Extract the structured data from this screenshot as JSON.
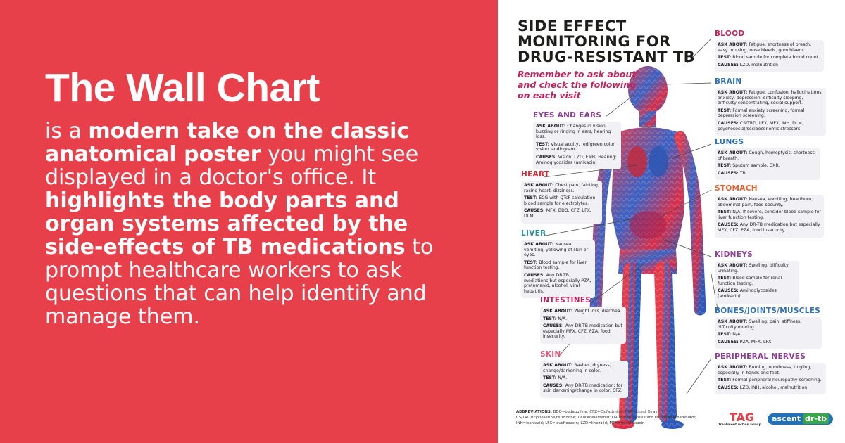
{
  "left": {
    "title": "The Wall Chart",
    "body": [
      {
        "text": "is a ",
        "bold": false
      },
      {
        "text": "modern take on the classic anatomical poster",
        "bold": true
      },
      {
        "text": " you might see displayed in a doctor's office. It ",
        "bold": false
      },
      {
        "text": "highlights the body parts and organ systems affected by the side-effects of TB medications",
        "bold": true
      },
      {
        "text": " to prompt healthcare workers to ask questions that can help identify and manage them.",
        "bold": false
      }
    ]
  },
  "poster": {
    "title": [
      "SIDE EFFECT",
      "MONITORING FOR",
      "DRUG-RESISTANT TB"
    ],
    "subtitle": "Remember to ask about and check the following on each visit",
    "sections": [
      {
        "name": "BLOOD",
        "color": "#c0245c",
        "items": [
          {
            "label": "ASK ABOUT:",
            "text": "Fatigue, shortness of breath, easy bruising, nose bleeds, gum bleeds."
          },
          {
            "label": "TEST:",
            "text": "Blood sample for complete blood count."
          },
          {
            "label": "CAUSES:",
            "text": "LZD, malnutrition"
          }
        ]
      },
      {
        "name": "BRAIN",
        "color": "#2f6fb5",
        "items": [
          {
            "label": "ASK ABOUT:",
            "text": "Fatigue, confusion, hallucinations, anxiety, depression, difficulty sleeping, difficulty concentrating, social support."
          },
          {
            "label": "TEST:",
            "text": "Formal anxiety screening, formal depression screening."
          },
          {
            "label": "CAUSES:",
            "text": "CS/TRD, LFX, MFX, INH, DLM, psychosocial/socioeconomic stressors"
          }
        ]
      },
      {
        "name": "EYES AND EARS",
        "color": "#8e3f97",
        "items": [
          {
            "label": "ASK ABOUT:",
            "text": "Changes in vision, buzzing or ringing in ears, hearing loss."
          },
          {
            "label": "TEST:",
            "text": "Visual acuity, red/green color vision, audiogram."
          },
          {
            "label": "CAUSES:",
            "text": "Vision: LZD, EMB; Hearing: Aminoglycosides (amikacin)"
          }
        ]
      },
      {
        "name": "LUNGS",
        "color": "#2f6fb5",
        "items": [
          {
            "label": "ASK ABOUT:",
            "text": "Cough, hemoptysis, shortness of breath."
          },
          {
            "label": "TEST:",
            "text": "Sputum sample, CXR."
          },
          {
            "label": "CAUSES:",
            "text": "TB"
          }
        ]
      },
      {
        "name": "HEART",
        "color": "#d32f3a",
        "items": [
          {
            "label": "ASK ABOUT:",
            "text": "Chest pain, fainting, racing heart, dizziness."
          },
          {
            "label": "TEST:",
            "text": "ECG with QTcF calculation, blood sample for electrolytes."
          },
          {
            "label": "CAUSES:",
            "text": "MFX, BDQ, CFZ, LFX, DLM"
          }
        ]
      },
      {
        "name": "STOMACH",
        "color": "#e8602c",
        "items": [
          {
            "label": "ASK ABOUT:",
            "text": "Nausea, vomiting, heartburn, abdominal pain, food security."
          },
          {
            "label": "TEST:",
            "text": "N/A. If severe, consider blood sample for liver function testing."
          },
          {
            "label": "CAUSES:",
            "text": "Any DR-TB medication but especially MFX, CFZ, PZA, food insecurity."
          }
        ]
      },
      {
        "name": "LIVER",
        "color": "#2a8f9a",
        "items": [
          {
            "label": "ASK ABOUT:",
            "text": "Nausea, vomiting, yellowing of skin or eyes."
          },
          {
            "label": "TEST:",
            "text": "Blood sample for liver function testing."
          },
          {
            "label": "CAUSES:",
            "text": "Any DR-TB mediations but especially PZA, pretomanid, alcohol, viral hepatitis."
          }
        ]
      },
      {
        "name": "KIDNEYS",
        "color": "#8e3f97",
        "items": [
          {
            "label": "ASK ABOUT:",
            "text": "Swelling, difficulty urinating."
          },
          {
            "label": "TEST:",
            "text": "Blood sample for renal function testing."
          },
          {
            "label": "CAUSES:",
            "text": "Aminoglycosides (amikacin)"
          }
        ]
      },
      {
        "name": "INTESTINES",
        "color": "#c0245c",
        "items": [
          {
            "label": "ASK ABOUT:",
            "text": "Weight loss, diarrhea."
          },
          {
            "label": "TEST:",
            "text": "N/A."
          },
          {
            "label": "CAUSES:",
            "text": "Any DR-TB medication but especially MFX, CFZ, PZA, food insecurity."
          }
        ]
      },
      {
        "name": "BONES/JOINTS/MUSCLES",
        "color": "#2f6fb5",
        "items": [
          {
            "label": "ASK ABOUT:",
            "text": "Swelling, pain, stiffness, difficulty moving."
          },
          {
            "label": "TEST:",
            "text": "N/A."
          },
          {
            "label": "CAUSES:",
            "text": "PZA, MFX, LFX"
          }
        ]
      },
      {
        "name": "SKIN",
        "color": "#e0557a",
        "items": [
          {
            "label": "ASK ABOUT:",
            "text": "Rashes, dryness, change/darkening in color."
          },
          {
            "label": "TEST:",
            "text": "N/A."
          },
          {
            "label": "CAUSES:",
            "text": "Any DR-TB medication; for skin darkening/change in color, CFZ."
          }
        ]
      },
      {
        "name": "PERIPHERAL NERVES",
        "color": "#8e3f97",
        "items": [
          {
            "label": "ASK ABOUT:",
            "text": "Burning, numbness, tingling, especially in hands and feet."
          },
          {
            "label": "TEST:",
            "text": "Formal peripheral neuropathy screening."
          },
          {
            "label": "CAUSES:",
            "text": "LZD, INH, alcohol, malnutrition"
          }
        ]
      }
    ],
    "abbreviations": {
      "label": "ABBREVIATIONS:",
      "text": "BDQ=bedaquiline; CFZ=Clofazimine; CXR=chest X-ray; CS/TRD=cycloserine/terizidone; DLM=delamanid; DR-TB=drug-resistant TB; EMB=ethambutol; INH=isoniazid; LFX=levofloxacin; LZD=linezolid; MFX=moxifloxacin"
    },
    "logos": {
      "tag": "TAG",
      "tag_name": "Treatment Action Group",
      "ascent": "ascent",
      "drtb": "dr-tb"
    }
  }
}
